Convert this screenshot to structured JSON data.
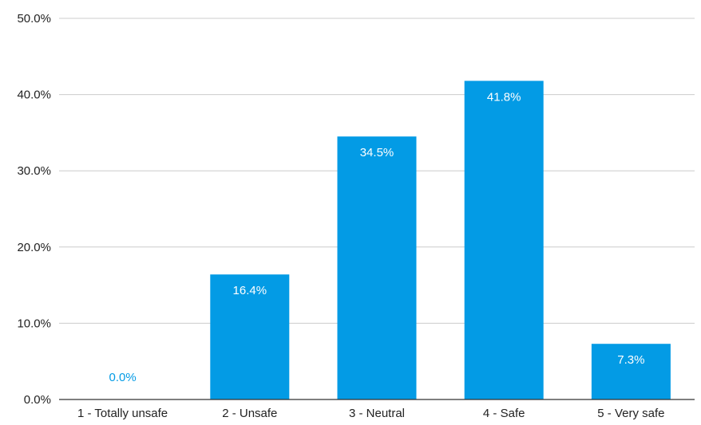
{
  "chart_data": {
    "type": "bar",
    "categories": [
      "1 - Totally unsafe",
      "2 - Unsafe",
      "3 - Neutral",
      "4 - Safe",
      "5 - Very safe"
    ],
    "values": [
      0.0,
      16.4,
      34.5,
      41.8,
      7.3
    ],
    "data_labels": [
      "0.0%",
      "16.4%",
      "34.5%",
      "41.8%",
      "7.3%"
    ],
    "title": "",
    "xlabel": "",
    "ylabel": "",
    "ylim": [
      0,
      50
    ],
    "y_ticks": [
      0,
      10,
      20,
      30,
      40,
      50
    ],
    "y_tick_labels": [
      "0.0%",
      "10.0%",
      "20.0%",
      "30.0%",
      "40.0%",
      "50.0%"
    ],
    "grid": true,
    "legend": "none",
    "bar_color": "#039be5",
    "grid_color": "#cccccc",
    "axis_color": "#333333"
  }
}
